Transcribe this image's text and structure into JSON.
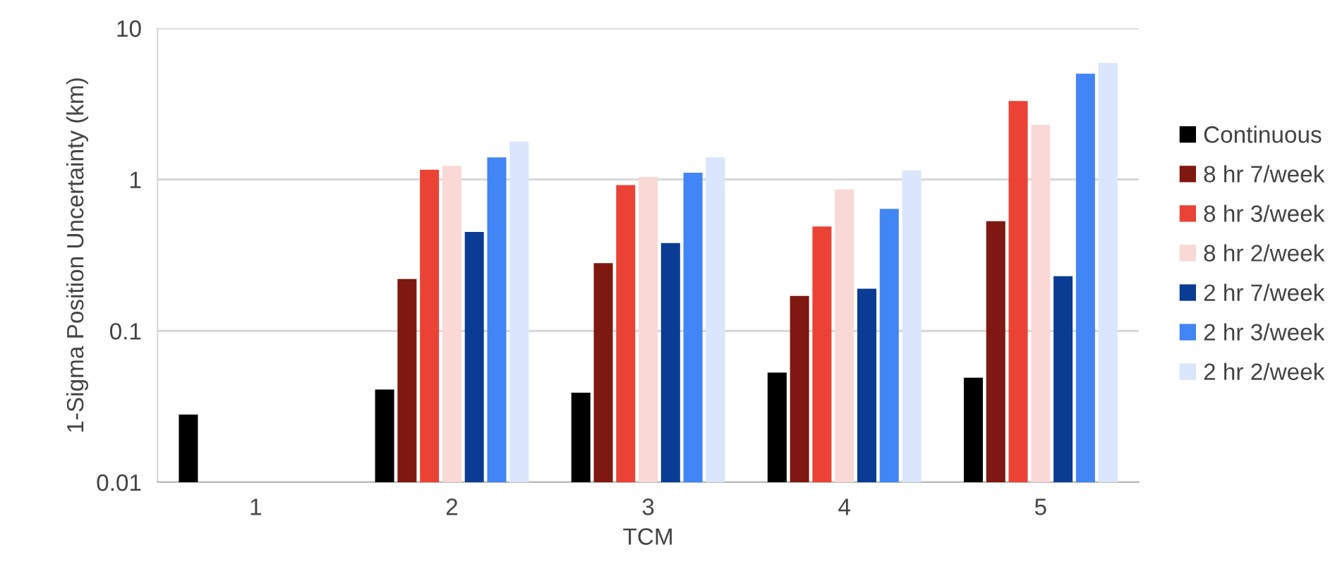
{
  "chart_data": {
    "type": "bar",
    "xlabel": "TCM",
    "ylabel": "1-Sigma Position Uncertainty (km)",
    "categories": [
      "1",
      "2",
      "3",
      "4",
      "5"
    ],
    "series": [
      {
        "name": "Continuous",
        "color": "#000000",
        "values": [
          0.028,
          0.041,
          0.039,
          0.053,
          0.049
        ]
      },
      {
        "name": "8 hr 7/week",
        "color": "#7f1810",
        "values": [
          null,
          0.22,
          0.28,
          0.17,
          0.53
        ]
      },
      {
        "name": "8 hr 3/week",
        "color": "#ea4335",
        "values": [
          null,
          1.16,
          0.92,
          0.49,
          3.3
        ]
      },
      {
        "name": "8 hr 2/week",
        "color": "#f9d8d6",
        "values": [
          null,
          1.23,
          1.04,
          0.86,
          2.3
        ]
      },
      {
        "name": "2 hr 7/week",
        "color": "#0b3c94",
        "values": [
          null,
          0.45,
          0.38,
          0.19,
          0.23
        ]
      },
      {
        "name": "2 hr 3/week",
        "color": "#4285f4",
        "values": [
          null,
          1.4,
          1.11,
          0.64,
          5.0
        ]
      },
      {
        "name": "2 hr 2/week",
        "color": "#d9e6fb",
        "values": [
          null,
          1.78,
          1.4,
          1.15,
          5.9
        ]
      }
    ],
    "log": "y",
    "ylim": [
      0.01,
      10
    ],
    "yticks": [
      0.01,
      0.1,
      1,
      10
    ],
    "grid": "y",
    "legend": "right"
  }
}
